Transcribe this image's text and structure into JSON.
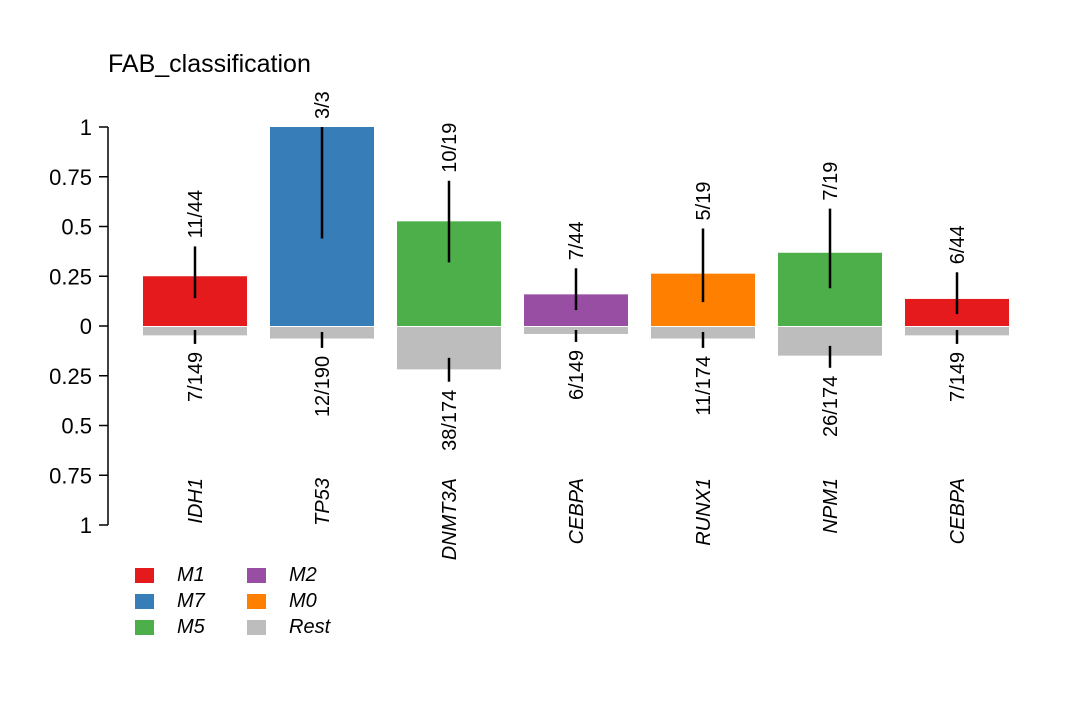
{
  "chart_data": {
    "type": "bar",
    "title": "FAB_classification",
    "upper_axis": {
      "ticks": [
        1,
        0.75,
        0.5,
        0.25,
        0
      ],
      "ylim": [
        0,
        1
      ]
    },
    "lower_axis": {
      "ticks": [
        0.25,
        0.5,
        0.75,
        1
      ],
      "ylim": [
        0,
        1
      ]
    },
    "categories": [
      "IDH1",
      "TP53",
      "DNMT3A",
      "CEBPA",
      "RUNX1",
      "NPM1",
      "CEBPA"
    ],
    "groups": [
      "M1",
      "M7",
      "M5",
      "M2",
      "M0",
      "M5",
      "M1"
    ],
    "upper_values": [
      0.25,
      1.0,
      0.526,
      0.159,
      0.263,
      0.368,
      0.136
    ],
    "upper_ci_low": [
      0.14,
      0.44,
      0.32,
      0.08,
      0.12,
      0.19,
      0.06
    ],
    "upper_ci_high": [
      0.4,
      1.0,
      0.73,
      0.29,
      0.49,
      0.59,
      0.27
    ],
    "upper_labels": [
      "11/44",
      "3/3",
      "10/19",
      "7/44",
      "5/19",
      "7/19",
      "6/44"
    ],
    "lower_values": [
      0.047,
      0.063,
      0.218,
      0.04,
      0.063,
      0.149,
      0.047
    ],
    "lower_ci_low": [
      0.02,
      0.03,
      0.16,
      0.02,
      0.03,
      0.1,
      0.02
    ],
    "lower_ci_high": [
      0.09,
      0.11,
      0.28,
      0.08,
      0.11,
      0.21,
      0.09
    ],
    "lower_labels": [
      "7/149",
      "12/190",
      "38/174",
      "6/149",
      "11/174",
      "26/174",
      "7/149"
    ],
    "legend": [
      {
        "name": "M1",
        "color": "#E41A1C"
      },
      {
        "name": "M2",
        "color": "#984EA3"
      },
      {
        "name": "M7",
        "color": "#377EB8"
      },
      {
        "name": "M0",
        "color": "#FF7F00"
      },
      {
        "name": "M5",
        "color": "#4DAF4A"
      },
      {
        "name": "Rest",
        "color": "#BDBDBD"
      }
    ],
    "legend_placement": "bottom-left"
  }
}
